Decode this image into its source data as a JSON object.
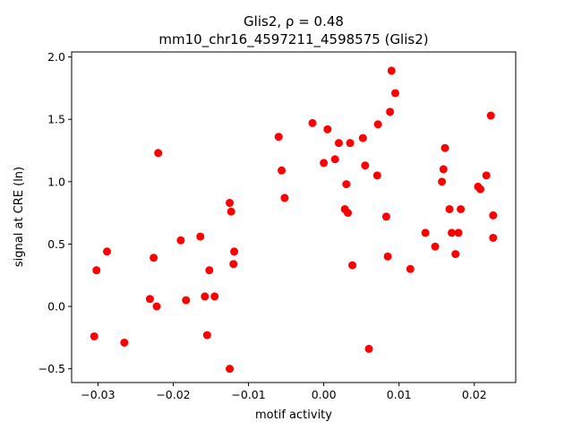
{
  "chart_data": {
    "type": "scatter",
    "title_line1": "Glis2, ρ = 0.48",
    "title_line2": "mm10_chr16_4597211_4598575 (Glis2)",
    "xlabel": "motif activity",
    "ylabel": "signal at CRE (ln)",
    "xlim": [
      -0.0335,
      0.0255
    ],
    "ylim": [
      -0.61,
      2.04
    ],
    "xticks": [
      -0.03,
      -0.02,
      -0.01,
      0.0,
      0.01,
      0.02
    ],
    "xtick_labels": [
      "−0.03",
      "−0.02",
      "−0.01",
      "0.00",
      "0.01",
      "0.02"
    ],
    "yticks": [
      -0.5,
      0.0,
      0.5,
      1.0,
      1.5,
      2.0
    ],
    "ytick_labels": [
      "−0.5",
      "0.0",
      "0.5",
      "1.0",
      "1.5",
      "2.0"
    ],
    "grid": false,
    "marker_color": "#ff0000",
    "points": [
      {
        "x": -0.0305,
        "y": -0.24
      },
      {
        "x": -0.0302,
        "y": 0.29
      },
      {
        "x": -0.0288,
        "y": 0.44
      },
      {
        "x": -0.0265,
        "y": -0.29
      },
      {
        "x": -0.0231,
        "y": 0.06
      },
      {
        "x": -0.0226,
        "y": 0.39
      },
      {
        "x": -0.0222,
        "y": 0.0
      },
      {
        "x": -0.022,
        "y": 1.23
      },
      {
        "x": -0.019,
        "y": 0.53
      },
      {
        "x": -0.0183,
        "y": 0.05
      },
      {
        "x": -0.0164,
        "y": 0.56
      },
      {
        "x": -0.0158,
        "y": 0.08
      },
      {
        "x": -0.0155,
        "y": -0.23
      },
      {
        "x": -0.0152,
        "y": 0.29
      },
      {
        "x": -0.0145,
        "y": 0.08
      },
      {
        "x": -0.0125,
        "y": 0.83
      },
      {
        "x": -0.0123,
        "y": 0.76
      },
      {
        "x": -0.0125,
        "y": -0.5
      },
      {
        "x": -0.0119,
        "y": 0.44
      },
      {
        "x": -0.012,
        "y": 0.34
      },
      {
        "x": -0.006,
        "y": 1.36
      },
      {
        "x": -0.0056,
        "y": 1.09
      },
      {
        "x": -0.0052,
        "y": 0.87
      },
      {
        "x": -0.0015,
        "y": 1.47
      },
      {
        "x": 0.0,
        "y": 1.15
      },
      {
        "x": 0.0005,
        "y": 1.42
      },
      {
        "x": 0.0015,
        "y": 1.18
      },
      {
        "x": 0.002,
        "y": 1.31
      },
      {
        "x": 0.0028,
        "y": 0.78
      },
      {
        "x": 0.003,
        "y": 0.98
      },
      {
        "x": 0.0032,
        "y": 0.75
      },
      {
        "x": 0.0035,
        "y": 1.31
      },
      {
        "x": 0.0038,
        "y": 0.33
      },
      {
        "x": 0.0052,
        "y": 1.35
      },
      {
        "x": 0.0055,
        "y": 1.13
      },
      {
        "x": 0.006,
        "y": -0.34
      },
      {
        "x": 0.0072,
        "y": 1.46
      },
      {
        "x": 0.0071,
        "y": 1.05
      },
      {
        "x": 0.0083,
        "y": 0.72
      },
      {
        "x": 0.0085,
        "y": 0.4
      },
      {
        "x": 0.0088,
        "y": 1.56
      },
      {
        "x": 0.009,
        "y": 1.89
      },
      {
        "x": 0.0095,
        "y": 1.71
      },
      {
        "x": 0.0115,
        "y": 0.3
      },
      {
        "x": 0.0135,
        "y": 0.59
      },
      {
        "x": 0.0148,
        "y": 0.48
      },
      {
        "x": 0.0157,
        "y": 1.0
      },
      {
        "x": 0.0159,
        "y": 1.1
      },
      {
        "x": 0.0161,
        "y": 1.27
      },
      {
        "x": 0.0167,
        "y": 0.78
      },
      {
        "x": 0.017,
        "y": 0.59
      },
      {
        "x": 0.0175,
        "y": 0.42
      },
      {
        "x": 0.0179,
        "y": 0.59
      },
      {
        "x": 0.0182,
        "y": 0.78
      },
      {
        "x": 0.0205,
        "y": 0.96
      },
      {
        "x": 0.0208,
        "y": 0.94
      },
      {
        "x": 0.0216,
        "y": 1.05
      },
      {
        "x": 0.0222,
        "y": 1.53
      },
      {
        "x": 0.0225,
        "y": 0.73
      },
      {
        "x": 0.0225,
        "y": 0.55
      }
    ]
  }
}
